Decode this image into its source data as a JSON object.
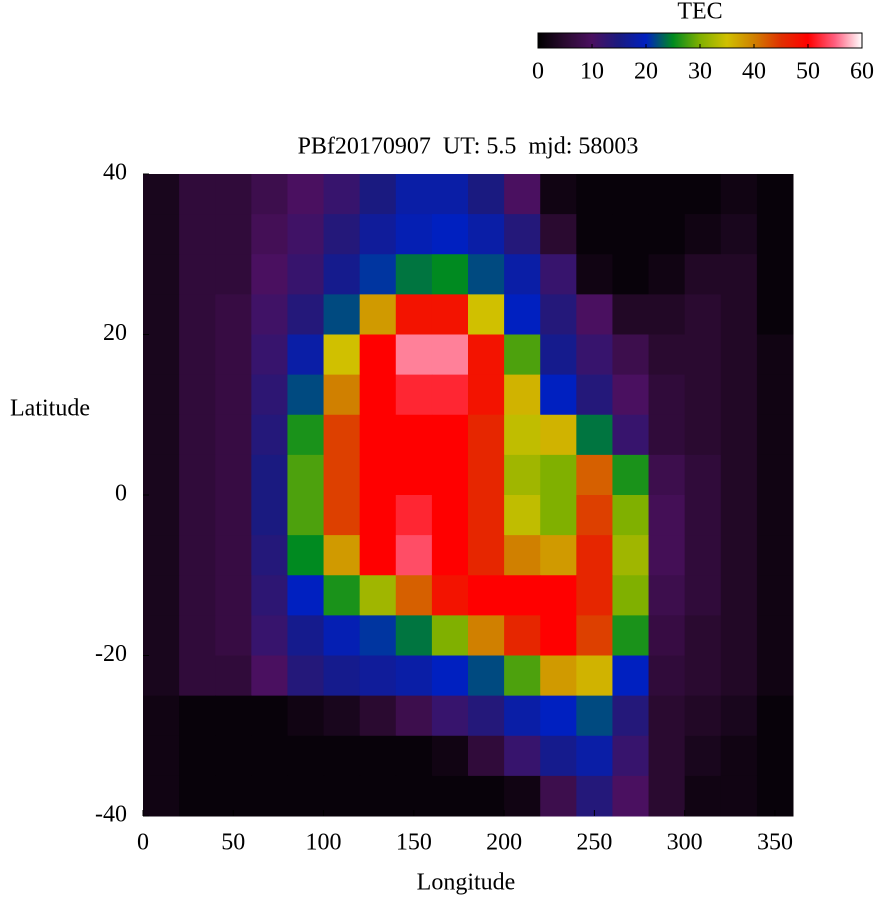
{
  "chart_data": {
    "type": "heatmap",
    "title": "PBf20170907  UT: 5.5  mjd: 58003",
    "x_label": "Longitude",
    "y_label": "Latitude",
    "colorbar_label": "TEC",
    "x": [
      10,
      30,
      50,
      70,
      90,
      110,
      130,
      150,
      170,
      190,
      210,
      230,
      250,
      270,
      290,
      310,
      330,
      350
    ],
    "y": [
      37.5,
      32.5,
      27.5,
      22.5,
      17.5,
      12.5,
      7.5,
      2.5,
      -2.5,
      -7.5,
      -12.5,
      -17.5,
      -22.5,
      -27.5,
      -32.5,
      -37.5
    ],
    "z": [
      [
        3,
        6,
        6,
        8,
        10,
        12,
        15,
        18,
        18,
        15,
        10,
        2,
        1,
        1,
        1,
        1,
        2,
        1
      ],
      [
        3,
        6,
        6,
        9,
        11,
        14,
        17,
        19,
        20,
        18,
        14,
        5,
        1,
        1,
        1,
        2,
        3,
        1
      ],
      [
        3,
        6,
        6,
        10,
        12,
        16,
        21,
        24,
        25,
        22,
        18,
        12,
        2,
        1,
        2,
        4,
        4,
        1
      ],
      [
        3,
        6,
        7,
        11,
        14,
        22,
        38,
        48,
        48,
        35,
        20,
        14,
        10,
        4,
        4,
        5,
        4,
        1
      ],
      [
        3,
        6,
        7,
        12,
        18,
        35,
        50,
        56,
        56,
        48,
        28,
        16,
        12,
        8,
        5,
        5,
        4,
        2
      ],
      [
        3,
        6,
        7,
        13,
        22,
        40,
        50,
        52,
        52,
        48,
        36,
        20,
        14,
        10,
        6,
        5,
        4,
        2
      ],
      [
        3,
        6,
        7,
        14,
        26,
        44,
        50,
        50,
        50,
        46,
        34,
        36,
        24,
        12,
        6,
        5,
        4,
        2
      ],
      [
        3,
        6,
        7,
        15,
        28,
        44,
        50,
        50,
        50,
        46,
        32,
        30,
        42,
        26,
        8,
        6,
        4,
        2
      ],
      [
        3,
        6,
        7,
        15,
        28,
        44,
        50,
        52,
        50,
        46,
        34,
        30,
        44,
        30,
        9,
        6,
        4,
        2
      ],
      [
        3,
        6,
        7,
        14,
        25,
        38,
        50,
        54,
        50,
        46,
        40,
        38,
        46,
        32,
        9,
        6,
        4,
        2
      ],
      [
        3,
        6,
        7,
        13,
        20,
        26,
        32,
        42,
        48,
        50,
        50,
        50,
        46,
        30,
        8,
        6,
        4,
        2
      ],
      [
        3,
        6,
        7,
        12,
        16,
        19,
        21,
        24,
        30,
        40,
        46,
        50,
        44,
        26,
        7,
        5,
        4,
        2
      ],
      [
        3,
        6,
        6,
        10,
        14,
        16,
        17,
        18,
        20,
        22,
        28,
        38,
        36,
        20,
        6,
        5,
        4,
        2
      ],
      [
        2,
        1,
        1,
        1,
        2,
        3,
        5,
        8,
        12,
        14,
        18,
        20,
        22,
        14,
        5,
        4,
        3,
        1
      ],
      [
        2,
        1,
        1,
        1,
        1,
        1,
        1,
        1,
        2,
        6,
        12,
        16,
        18,
        12,
        5,
        3,
        2,
        1
      ],
      [
        2,
        1,
        1,
        1,
        1,
        1,
        1,
        1,
        1,
        1,
        2,
        8,
        14,
        10,
        5,
        2,
        2,
        1
      ]
    ],
    "xlim": [
      0,
      360
    ],
    "ylim": [
      -40,
      40
    ],
    "xticks": [
      0,
      50,
      100,
      150,
      200,
      250,
      300,
      350
    ],
    "yticks": [
      -40,
      -20,
      0,
      20,
      40
    ],
    "zlim": [
      0,
      60
    ],
    "colorbar_ticks": [
      0,
      10,
      20,
      30,
      40,
      50,
      60
    ],
    "colorscale": [
      [
        0,
        "#000000"
      ],
      [
        5,
        "#2a0a30"
      ],
      [
        10,
        "#4a1060"
      ],
      [
        15,
        "#1a1a80"
      ],
      [
        20,
        "#0020c0"
      ],
      [
        25,
        "#008a20"
      ],
      [
        30,
        "#80b000"
      ],
      [
        35,
        "#d0c000"
      ],
      [
        40,
        "#d08000"
      ],
      [
        45,
        "#e03000"
      ],
      [
        50,
        "#ff0000"
      ],
      [
        55,
        "#ff6080"
      ],
      [
        60,
        "#ffffff"
      ]
    ]
  }
}
